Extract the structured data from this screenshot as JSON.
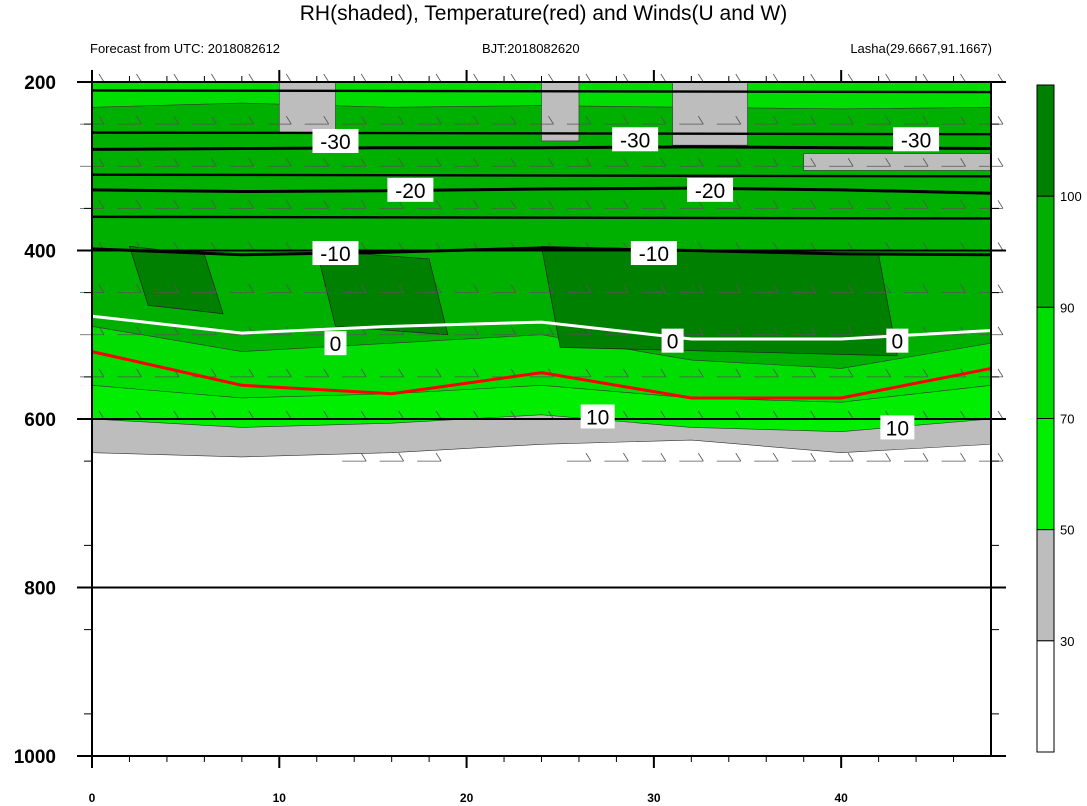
{
  "chart_data": {
    "type": "contour",
    "title": "RH(shaded), Temperature(red) and Winds(U and W)",
    "subtitle_left": "Forecast from UTC: 2018082612",
    "subtitle_center": "BJT:2018082620",
    "subtitle_right": "Lasha(29.6667,91.1667)",
    "xlabel": "",
    "ylabel": "",
    "x_range": [
      0,
      48
    ],
    "y_range": [
      200,
      1000
    ],
    "y_inverted": true,
    "x_ticks": [
      0,
      10,
      20,
      30,
      40
    ],
    "y_ticks": [
      200,
      400,
      600,
      800,
      1000
    ],
    "rh_colorbar": {
      "levels": [
        30,
        50,
        70,
        90,
        100
      ],
      "colors": [
        "#ffffff",
        "#bdbdbd",
        "#00ee00",
        "#00dd00",
        "#00b000",
        "#008000"
      ]
    },
    "temperature_isotherms": [
      {
        "label": "-30",
        "color": "#000000",
        "y": [
          280,
          279,
          278,
          278,
          277,
          278,
          279
        ]
      },
      {
        "label": "-20",
        "color": "#000000",
        "y": [
          328,
          330,
          329,
          327,
          326,
          328,
          332
        ]
      },
      {
        "label": "-10",
        "color": "#000000",
        "y": [
          398,
          405,
          402,
          397,
          400,
          404,
          405
        ]
      },
      {
        "label": "0",
        "color": "#ffffff",
        "y": [
          478,
          498,
          490,
          485,
          505,
          505,
          495
        ]
      },
      {
        "label": "10",
        "color": "#ff0000",
        "y": [
          520,
          560,
          570,
          545,
          575,
          575,
          540
        ]
      }
    ],
    "isotherm_x": [
      0,
      8,
      16,
      24,
      32,
      40,
      48
    ],
    "contour_labels": [
      {
        "text": "-30",
        "x": 13,
        "y": 270
      },
      {
        "text": "-30",
        "x": 29,
        "y": 268
      },
      {
        "text": "-30",
        "x": 44,
        "y": 268
      },
      {
        "text": "-20",
        "x": 17,
        "y": 328
      },
      {
        "text": "-20",
        "x": 33,
        "y": 328
      },
      {
        "text": "-10",
        "x": 13,
        "y": 403
      },
      {
        "text": "-10",
        "x": 30,
        "y": 403
      },
      {
        "text": "0",
        "x": 13,
        "y": 510
      },
      {
        "text": "0",
        "x": 31,
        "y": 507
      },
      {
        "text": "0",
        "x": 43,
        "y": 507
      },
      {
        "text": "10",
        "x": 27,
        "y": 597
      },
      {
        "text": "10",
        "x": 43,
        "y": 610
      }
    ],
    "wind_barb_levels": [
      200,
      250,
      300,
      350,
      400,
      450,
      500,
      550,
      600,
      650
    ]
  }
}
